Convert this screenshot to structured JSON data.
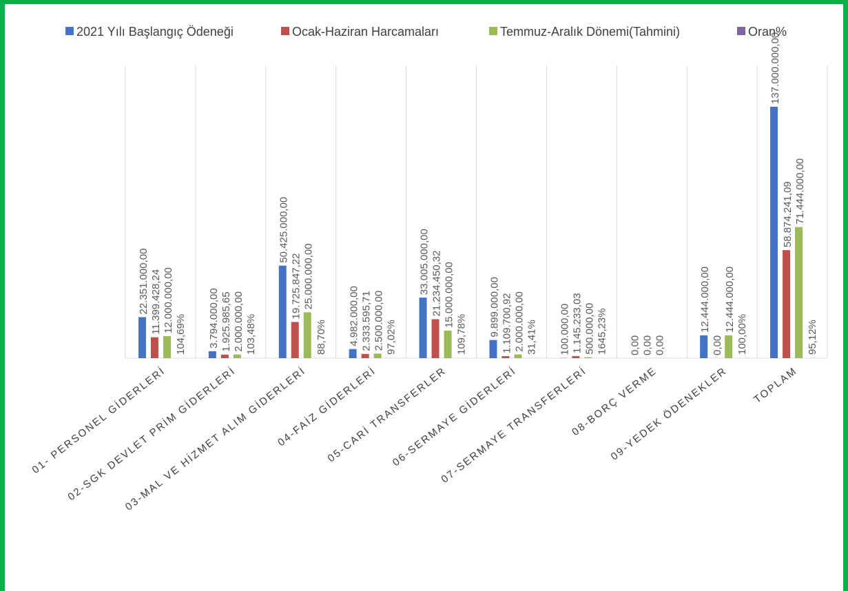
{
  "chart_data": {
    "type": "bar",
    "categories": [
      "01- PERSONEL GİDERLERİ",
      "02-SGK DEVLET PRİM GİDERLERİ",
      "03-MAL VE HİZMET ALIM GİDERLERİ",
      "04-FAİZ GİDERLERİ",
      "05-CARİ TRANSFERLER",
      "06-SERMAYE GİDERLERİ",
      "07-SERMAYE TRANSFERLERİ",
      "08-BORÇ VERME",
      "09-YEDEK ÖDENEKLER",
      "TOPLAM"
    ],
    "series": [
      {
        "name": "2021 Yılı Başlangıç Ödeneği",
        "color": "#4472c4",
        "values": [
          22351000.0,
          3794000.0,
          50425000.0,
          4982000.0,
          33005000.0,
          9899000.0,
          100000.0,
          0.0,
          12444000.0,
          137000000.0
        ],
        "labels": [
          "22.351.000,00",
          "3.794.000,00",
          "50.425.000,00",
          "4.982.000,00",
          "33.005.000,00",
          "9.899.000,00",
          "100.000,00",
          "0,00",
          "12.444.000,00",
          "137.000.000,00"
        ]
      },
      {
        "name": "Ocak-Haziran Harcamaları",
        "color": "#c0504d",
        "values": [
          11399428.24,
          1925985.65,
          19725847.22,
          2333595.71,
          21234450.32,
          1109700.92,
          1145233.03,
          0.0,
          0.0,
          58874241.09
        ],
        "labels": [
          "11.399.428,24",
          "1.925.985,65",
          "19.725.847,22",
          "2.333.595,71",
          "21.234.450,32",
          "1.109.700,92",
          "1.145.233,03",
          "0,00",
          "0,00",
          "58.874.241,09"
        ]
      },
      {
        "name": "Temmuz-Aralık Dönemi(Tahmini)",
        "color": "#9bbb59",
        "values": [
          12000000.0,
          2000000.0,
          25000000.0,
          2500000.0,
          15000000.0,
          2000000.0,
          500000.0,
          0.0,
          12444000.0,
          71444000.0
        ],
        "labels": [
          "12.000.000,00",
          "2.000.000,00",
          "25.000.000,00",
          "2.500.000,00",
          "15.000.000,00",
          "2.000.000,00",
          "500.000,00",
          "0,00",
          "12.444.000,00",
          "71.444.000,00"
        ]
      },
      {
        "name": "Oran%",
        "color": "#8064a2",
        "values": [
          104.69,
          103.48,
          88.7,
          97.02,
          109.78,
          31.41,
          1645.23,
          null,
          100.0,
          95.12
        ],
        "labels": [
          "104,69%",
          "103,48%",
          "88,70%",
          "97,02%",
          "109,78%",
          "31,41%",
          "1645,23%",
          "",
          "100,00%",
          "95,12%"
        ]
      }
    ],
    "ylim": [
      0,
      137000000
    ],
    "grid": "vertical-category-separators",
    "legend": "top"
  }
}
